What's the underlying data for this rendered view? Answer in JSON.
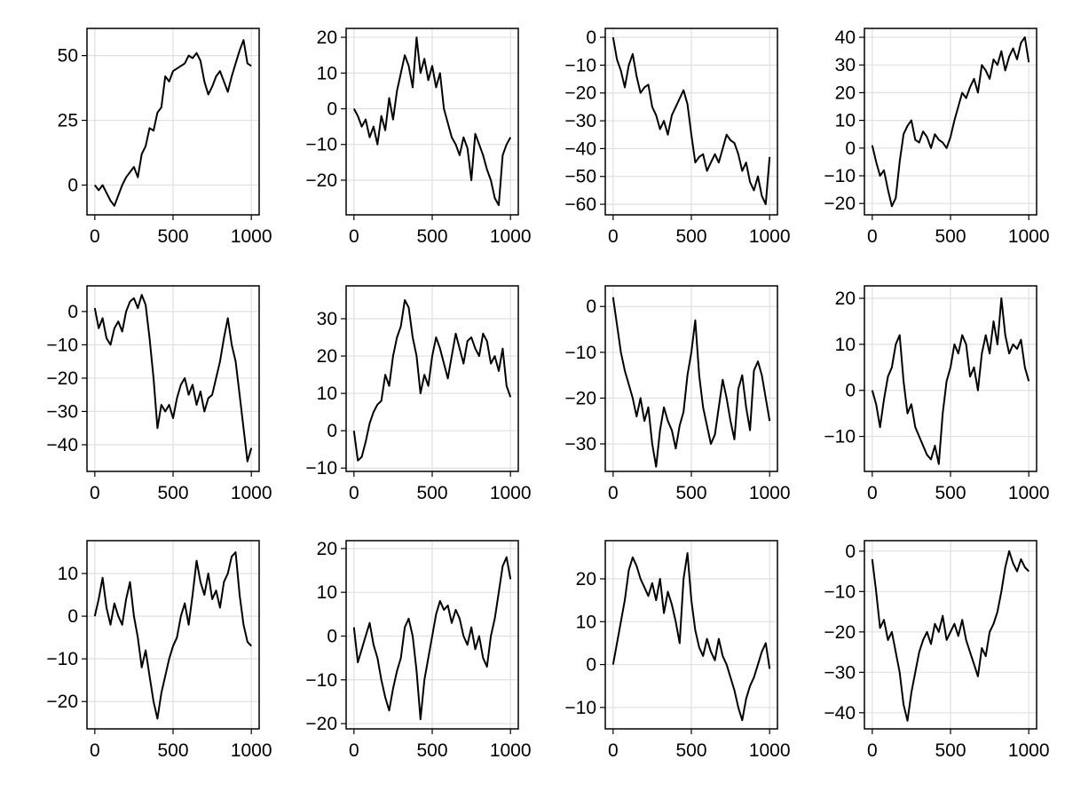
{
  "chart_data": [
    {
      "type": "line",
      "xlim": [
        -50,
        1050
      ],
      "ylim": [
        -11.5,
        60.5
      ],
      "xticks": [
        "0",
        "500",
        "1000"
      ],
      "xtick_values": [
        0,
        500,
        1000
      ],
      "yticks": [
        "0",
        "25",
        "50"
      ],
      "ytick_values": [
        0,
        25,
        50
      ],
      "grid": true,
      "x_range": [
        0,
        1000
      ],
      "values": [
        0,
        -2,
        0,
        -3,
        -6,
        -8,
        -4,
        0,
        3,
        5,
        7,
        3,
        12,
        15,
        22,
        21,
        28,
        30,
        42,
        40,
        44,
        45,
        46,
        47,
        50,
        49,
        51,
        48,
        40,
        35,
        38,
        42,
        44,
        40,
        36,
        42,
        47,
        52,
        56,
        47,
        46
      ]
    },
    {
      "type": "line",
      "xlim": [
        -50,
        1050
      ],
      "ylim": [
        -29.7,
        22.5
      ],
      "xticks": [
        "0",
        "500",
        "1000"
      ],
      "xtick_values": [
        0,
        500,
        1000
      ],
      "yticks": [
        "−20",
        "−10",
        "0",
        "10",
        "20"
      ],
      "ytick_values": [
        -20,
        -10,
        0,
        10,
        20
      ],
      "grid": true,
      "x_range": [
        0,
        1000
      ],
      "values": [
        0,
        -2,
        -5,
        -3,
        -8,
        -5,
        -10,
        -2,
        -6,
        3,
        -3,
        5,
        10,
        15,
        12,
        6,
        20,
        10,
        14,
        8,
        12,
        6,
        10,
        0,
        -4,
        -8,
        -10,
        -13,
        -8,
        -11,
        -20,
        -7,
        -10,
        -13,
        -17,
        -20,
        -25,
        -27,
        -13,
        -10,
        -8
      ]
    },
    {
      "type": "line",
      "xlim": [
        -50,
        1050
      ],
      "ylim": [
        -63.8,
        3.2
      ],
      "xticks": [
        "0",
        "500",
        "1000"
      ],
      "xtick_values": [
        0,
        500,
        1000
      ],
      "yticks": [
        "−60",
        "−50",
        "−40",
        "−30",
        "−20",
        "−10",
        "0"
      ],
      "ytick_values": [
        -60,
        -50,
        -40,
        -30,
        -20,
        -10,
        0
      ],
      "grid": true,
      "x_range": [
        0,
        1000
      ],
      "values": [
        0,
        -8,
        -12,
        -18,
        -10,
        -6,
        -14,
        -20,
        -18,
        -17,
        -25,
        -28,
        -33,
        -30,
        -35,
        -28,
        -25,
        -22,
        -19,
        -24,
        -35,
        -45,
        -43,
        -42,
        -48,
        -45,
        -42,
        -45,
        -40,
        -35,
        -37,
        -38,
        -42,
        -48,
        -45,
        -52,
        -55,
        -50,
        -57,
        -60,
        -43
      ]
    },
    {
      "type": "line",
      "xlim": [
        -50,
        1050
      ],
      "ylim": [
        -24.1,
        43.2
      ],
      "xticks": [
        "0",
        "500",
        "1000"
      ],
      "xtick_values": [
        0,
        500,
        1000
      ],
      "yticks": [
        "−20",
        "−10",
        "0",
        "10",
        "20",
        "30",
        "40"
      ],
      "ytick_values": [
        -20,
        -10,
        0,
        10,
        20,
        30,
        40
      ],
      "grid": true,
      "x_range": [
        0,
        1000
      ],
      "values": [
        1,
        -5,
        -10,
        -8,
        -15,
        -21,
        -18,
        -5,
        5,
        8,
        10,
        3,
        2,
        6,
        4,
        0,
        5,
        3,
        2,
        0,
        4,
        10,
        15,
        20,
        18,
        22,
        25,
        20,
        30,
        28,
        25,
        32,
        30,
        35,
        28,
        33,
        36,
        32,
        38,
        40,
        31
      ]
    },
    {
      "type": "line",
      "xlim": [
        -50,
        1050
      ],
      "ylim": [
        -48,
        7.7
      ],
      "xticks": [
        "0",
        "500",
        "1000"
      ],
      "xtick_values": [
        0,
        500,
        1000
      ],
      "yticks": [
        "−40",
        "−30",
        "−20",
        "−10",
        "0"
      ],
      "ytick_values": [
        -40,
        -30,
        -20,
        -10,
        0
      ],
      "grid": true,
      "x_range": [
        0,
        1000
      ],
      "values": [
        1,
        -5,
        -2,
        -8,
        -10,
        -5,
        -3,
        -6,
        0,
        3,
        4,
        1,
        5,
        2,
        -8,
        -20,
        -35,
        -28,
        -30,
        -28,
        -32,
        -26,
        -22,
        -20,
        -25,
        -22,
        -28,
        -24,
        -30,
        -26,
        -25,
        -20,
        -15,
        -8,
        -2,
        -10,
        -15,
        -25,
        -35,
        -45,
        -41
      ]
    },
    {
      "type": "line",
      "xlim": [
        -50,
        1050
      ],
      "ylim": [
        -10.9,
        38.8
      ],
      "xticks": [
        "0",
        "500",
        "1000"
      ],
      "xtick_values": [
        0,
        500,
        1000
      ],
      "yticks": [
        "−10",
        "0",
        "10",
        "20",
        "30"
      ],
      "ytick_values": [
        -10,
        0,
        10,
        20,
        30
      ],
      "grid": true,
      "x_range": [
        0,
        1000
      ],
      "values": [
        0,
        -8,
        -7,
        -3,
        2,
        5,
        7,
        8,
        15,
        12,
        20,
        25,
        28,
        35,
        33,
        25,
        20,
        10,
        15,
        12,
        20,
        25,
        22,
        18,
        14,
        20,
        26,
        22,
        18,
        24,
        25,
        22,
        20,
        26,
        24,
        18,
        20,
        16,
        22,
        12,
        9
      ]
    },
    {
      "type": "line",
      "xlim": [
        -50,
        1050
      ],
      "ylim": [
        -36,
        4.5
      ],
      "xticks": [
        "0",
        "500",
        "1000"
      ],
      "xtick_values": [
        0,
        500,
        1000
      ],
      "yticks": [
        "−30",
        "−20",
        "−10",
        "0"
      ],
      "ytick_values": [
        -30,
        -20,
        -10,
        0
      ],
      "grid": true,
      "x_range": [
        0,
        1000
      ],
      "values": [
        2,
        -4,
        -10,
        -14,
        -17,
        -20,
        -24,
        -20,
        -25,
        -22,
        -30,
        -35,
        -27,
        -22,
        -25,
        -27,
        -31,
        -26,
        -23,
        -15,
        -10,
        -3,
        -15,
        -22,
        -26,
        -30,
        -28,
        -22,
        -16,
        -20,
        -25,
        -29,
        -18,
        -15,
        -22,
        -27,
        -14,
        -12,
        -15,
        -20,
        -25
      ]
    },
    {
      "type": "line",
      "xlim": [
        -50,
        1050
      ],
      "ylim": [
        -17.6,
        22.7
      ],
      "xticks": [
        "0",
        "500",
        "1000"
      ],
      "xtick_values": [
        0,
        500,
        1000
      ],
      "yticks": [
        "−10",
        "0",
        "10",
        "20"
      ],
      "ytick_values": [
        -10,
        0,
        10,
        20
      ],
      "grid": true,
      "x_range": [
        0,
        1000
      ],
      "values": [
        0,
        -3,
        -8,
        -2,
        3,
        5,
        10,
        12,
        2,
        -5,
        -3,
        -8,
        -10,
        -12,
        -14,
        -15,
        -12,
        -16,
        -5,
        2,
        5,
        10,
        8,
        12,
        10,
        3,
        5,
        0,
        8,
        12,
        8,
        15,
        10,
        20,
        12,
        8,
        10,
        9,
        11,
        5,
        2
      ]
    },
    {
      "type": "line",
      "xlim": [
        -50,
        1050
      ],
      "ylim": [
        -26.4,
        17.7
      ],
      "xticks": [
        "0",
        "500",
        "1000"
      ],
      "xtick_values": [
        0,
        500,
        1000
      ],
      "yticks": [
        "−20",
        "−10",
        "0",
        "10"
      ],
      "ytick_values": [
        -20,
        -10,
        0,
        10
      ],
      "grid": true,
      "x_range": [
        0,
        1000
      ],
      "values": [
        0,
        4,
        9,
        2,
        -2,
        3,
        0,
        -2,
        4,
        8,
        0,
        -5,
        -12,
        -8,
        -14,
        -20,
        -24,
        -18,
        -14,
        -10,
        -7,
        -5,
        0,
        3,
        -2,
        5,
        13,
        8,
        5,
        10,
        4,
        6,
        2,
        8,
        10,
        14,
        15,
        5,
        -2,
        -6,
        -7
      ]
    },
    {
      "type": "line",
      "xlim": [
        -50,
        1050
      ],
      "ylim": [
        -21.2,
        21.8
      ],
      "xticks": [
        "0",
        "500",
        "1000"
      ],
      "xtick_values": [
        0,
        500,
        1000
      ],
      "yticks": [
        "−20",
        "−10",
        "0",
        "10",
        "20"
      ],
      "ytick_values": [
        -20,
        -10,
        0,
        10,
        20
      ],
      "grid": true,
      "x_range": [
        0,
        1000
      ],
      "values": [
        2,
        -6,
        -3,
        0,
        3,
        -2,
        -5,
        -10,
        -14,
        -17,
        -12,
        -8,
        -5,
        2,
        4,
        0,
        -8,
        -19,
        -10,
        -5,
        0,
        5,
        8,
        6,
        7,
        3,
        6,
        4,
        0,
        -2,
        2,
        -3,
        0,
        -5,
        -7,
        0,
        4,
        10,
        16,
        18,
        13
      ]
    },
    {
      "type": "line",
      "xlim": [
        -50,
        1050
      ],
      "ylim": [
        -15,
        28.9
      ],
      "xticks": [
        "0",
        "500",
        "1000"
      ],
      "xtick_values": [
        0,
        500,
        1000
      ],
      "yticks": [
        "−10",
        "0",
        "10",
        "20"
      ],
      "ytick_values": [
        -10,
        0,
        10,
        20
      ],
      "grid": true,
      "x_range": [
        0,
        1000
      ],
      "values": [
        0,
        5,
        10,
        15,
        22,
        25,
        23,
        20,
        18,
        16,
        19,
        15,
        20,
        12,
        17,
        14,
        10,
        5,
        20,
        26,
        15,
        8,
        4,
        2,
        6,
        3,
        1,
        6,
        2,
        0,
        -3,
        -6,
        -10,
        -13,
        -8,
        -5,
        -3,
        0,
        3,
        5,
        -1
      ]
    },
    {
      "type": "line",
      "xlim": [
        -50,
        1050
      ],
      "ylim": [
        -44,
        2.6
      ],
      "xticks": [
        "0",
        "500",
        "1000"
      ],
      "xtick_values": [
        0,
        500,
        1000
      ],
      "yticks": [
        "−40",
        "−30",
        "−20",
        "−10",
        "0"
      ],
      "ytick_values": [
        -40,
        -30,
        -20,
        -10,
        0
      ],
      "grid": true,
      "x_range": [
        0,
        1000
      ],
      "values": [
        -2,
        -10,
        -19,
        -17,
        -22,
        -20,
        -25,
        -30,
        -38,
        -42,
        -35,
        -30,
        -25,
        -22,
        -20,
        -23,
        -18,
        -20,
        -16,
        -22,
        -20,
        -18,
        -21,
        -17,
        -22,
        -25,
        -28,
        -31,
        -24,
        -26,
        -20,
        -18,
        -15,
        -10,
        -4,
        0,
        -3,
        -5,
        -2,
        -4,
        -5
      ]
    }
  ],
  "colors": {
    "line": "#000000",
    "grid": "#e0e0e0",
    "frame": "#000000"
  }
}
